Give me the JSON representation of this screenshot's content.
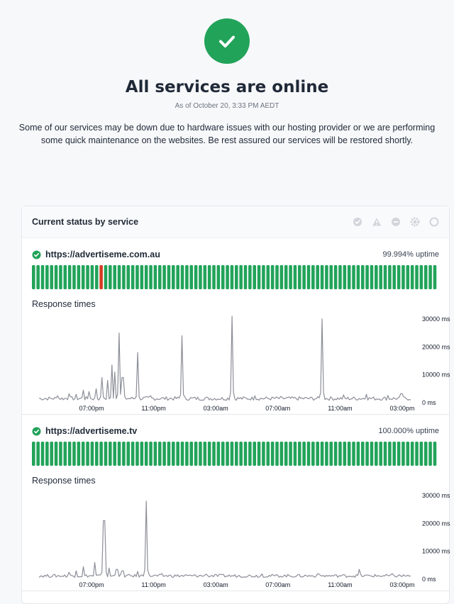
{
  "header": {
    "title": "All services are online",
    "as_of": "As of October 20, 3:33 PM AEDT",
    "notice": "Some of our services may be down due to hardware issues with our hosting provider or we are performing some quick maintenance on the websites. Be rest assured our services will be restored shortly."
  },
  "status_card": {
    "title": "Current status by service",
    "legend_icons": [
      "operational-icon",
      "warning-icon",
      "outage-icon",
      "maintenance-icon",
      "unknown-icon"
    ]
  },
  "colors": {
    "up": "#22a35a",
    "down": "#d63b22",
    "line": "#9ca3af"
  },
  "services": [
    {
      "name": "https://advertiseme.com.au",
      "uptime": "99.994% uptime",
      "bar_count": 90,
      "down_bars": [
        15
      ],
      "response_label": "Response times",
      "chart_data": {
        "type": "line",
        "x_ticks": [
          "07:00pm",
          "11:00pm",
          "03:00am",
          "07:00am",
          "11:00am",
          "03:00pm"
        ],
        "y_ticks": [
          "0 ms",
          "10000 ms",
          "20000 ms",
          "30000 ms"
        ],
        "ylim": [
          0,
          30000
        ],
        "baseline": 1500,
        "spikes": [
          {
            "t": 0.05,
            "v": 2500
          },
          {
            "t": 0.08,
            "v": 3200
          },
          {
            "t": 0.1,
            "v": 3000
          },
          {
            "t": 0.12,
            "v": 4500
          },
          {
            "t": 0.135,
            "v": 4000
          },
          {
            "t": 0.155,
            "v": 5000
          },
          {
            "t": 0.17,
            "v": 9000
          },
          {
            "t": 0.185,
            "v": 8000
          },
          {
            "t": 0.195,
            "v": 13500
          },
          {
            "t": 0.205,
            "v": 11000
          },
          {
            "t": 0.215,
            "v": 25000
          },
          {
            "t": 0.225,
            "v": 9000
          },
          {
            "t": 0.265,
            "v": 18000
          },
          {
            "t": 0.3,
            "v": 2500
          },
          {
            "t": 0.385,
            "v": 24000
          },
          {
            "t": 0.52,
            "v": 31000
          },
          {
            "t": 0.58,
            "v": 2500
          },
          {
            "t": 0.65,
            "v": 2200
          },
          {
            "t": 0.76,
            "v": 30000
          },
          {
            "t": 0.82,
            "v": 2800
          },
          {
            "t": 0.88,
            "v": 3000
          },
          {
            "t": 0.94,
            "v": 2600
          },
          {
            "t": 0.975,
            "v": 3200
          }
        ]
      }
    },
    {
      "name": "https://advertiseme.tv",
      "uptime": "100.000% uptime",
      "bar_count": 90,
      "down_bars": [],
      "response_label": "Response times",
      "chart_data": {
        "type": "line",
        "x_ticks": [
          "07:00pm",
          "11:00pm",
          "03:00am",
          "07:00am",
          "11:00am",
          "03:00pm"
        ],
        "y_ticks": [
          "0 ms",
          "10000 ms",
          "20000 ms",
          "30000 ms"
        ],
        "ylim": [
          0,
          30000
        ],
        "baseline": 1200,
        "spikes": [
          {
            "t": 0.08,
            "v": 2500
          },
          {
            "t": 0.1,
            "v": 3000
          },
          {
            "t": 0.12,
            "v": 4500
          },
          {
            "t": 0.15,
            "v": 6000
          },
          {
            "t": 0.175,
            "v": 21000
          },
          {
            "t": 0.19,
            "v": 4000
          },
          {
            "t": 0.21,
            "v": 3500
          },
          {
            "t": 0.225,
            "v": 3000
          },
          {
            "t": 0.265,
            "v": 2800
          },
          {
            "t": 0.29,
            "v": 28000
          },
          {
            "t": 0.33,
            "v": 2000
          },
          {
            "t": 0.45,
            "v": 1800
          },
          {
            "t": 0.6,
            "v": 1900
          },
          {
            "t": 0.75,
            "v": 2000
          },
          {
            "t": 0.86,
            "v": 3500
          },
          {
            "t": 0.95,
            "v": 2000
          }
        ]
      }
    }
  ]
}
